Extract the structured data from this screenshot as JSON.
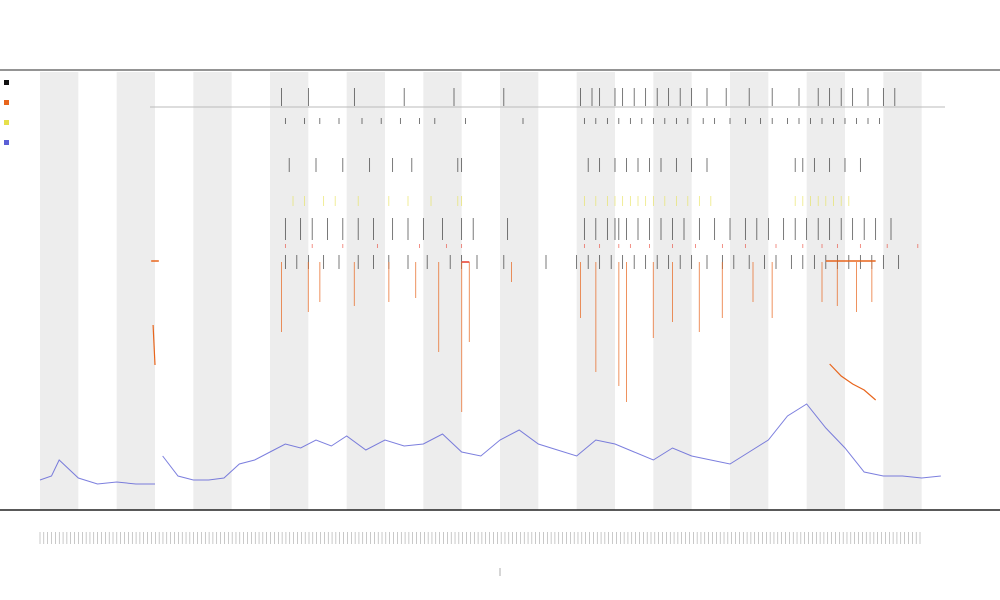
{
  "chart_data": {
    "type": "line",
    "title_lines": [
      "",
      "",
      ""
    ],
    "xlabel": "",
    "ylabel": "",
    "colors": {
      "line": "#5b5fd6",
      "band": "#ededed",
      "hr": "#e8651c",
      "spike": "#e8651c",
      "event_black": "#111111",
      "event_red": "#e83a2a",
      "event_yellow": "#e6e04a",
      "axis": "#222222",
      "guide": "#bbbbbb"
    },
    "legend": {
      "placement": "top-left",
      "items": [
        "",
        "",
        "",
        ""
      ]
    },
    "day_bands": [
      [
        0,
        1
      ],
      [
        2,
        3
      ],
      [
        4,
        5
      ],
      [
        6,
        7
      ],
      [
        8,
        9
      ],
      [
        10,
        11
      ],
      [
        12,
        13
      ],
      [
        14,
        15
      ],
      [
        16,
        17
      ],
      [
        18,
        19
      ],
      [
        20,
        21
      ],
      [
        22,
        23
      ]
    ],
    "x_range": [
      0,
      24
    ],
    "y_range": [
      0,
      100
    ],
    "segments": [
      {
        "x": [
          0.0,
          0.3,
          0.5,
          1.0,
          1.5,
          2.0,
          2.5,
          3.0
        ],
        "y": [
          10,
          12,
          20,
          11,
          8,
          9,
          8,
          8
        ]
      },
      {
        "x": [
          3.2,
          3.6,
          4.0,
          4.4,
          4.8,
          5.2,
          5.6,
          6.0,
          6.4,
          6.8,
          7.2,
          7.6,
          8.0,
          8.5,
          9.0,
          9.5,
          10.0,
          10.5,
          11.0,
          11.5,
          12.0,
          12.5,
          13.0,
          13.5,
          14.0,
          14.5,
          15.0,
          15.5,
          16.0,
          16.5,
          17.0,
          17.5,
          18.0,
          18.5,
          19.0,
          19.5,
          20.0,
          20.5,
          21.0,
          21.5,
          22.0,
          22.5,
          23.0,
          23.5
        ],
        "y": [
          22,
          12,
          10,
          10,
          11,
          18,
          20,
          24,
          28,
          26,
          30,
          27,
          32,
          25,
          30,
          27,
          28,
          33,
          24,
          22,
          30,
          35,
          28,
          25,
          22,
          30,
          28,
          24,
          20,
          26,
          22,
          20,
          18,
          24,
          30,
          42,
          48,
          36,
          26,
          14,
          12,
          12,
          11,
          12
        ]
      }
    ],
    "hr_segments": [
      {
        "x": [
          20.6,
          20.9,
          21.2,
          21.5,
          21.8
        ],
        "y": [
          58,
          52,
          48,
          45,
          40
        ]
      }
    ],
    "spikes_x": [
      6.3,
      7.0,
      7.3,
      8.2,
      9.1,
      9.8,
      10.4,
      11.0,
      11.2,
      12.3,
      14.1,
      14.5,
      15.1,
      15.3,
      16.0,
      16.5,
      17.2,
      17.8,
      18.6,
      19.1,
      20.4,
      20.8,
      21.3,
      21.7
    ],
    "spike_heights": [
      0.35,
      0.25,
      0.2,
      0.22,
      0.2,
      0.18,
      0.45,
      0.75,
      0.4,
      0.1,
      0.28,
      0.55,
      0.62,
      0.7,
      0.38,
      0.3,
      0.35,
      0.28,
      0.2,
      0.28,
      0.2,
      0.22,
      0.25,
      0.2
    ],
    "event_rows": [
      {
        "name": "",
        "color_key": "event_black",
        "x": [
          6.3,
          7.0,
          8.2,
          9.5,
          10.8,
          12.1,
          14.1,
          14.4,
          14.6,
          15.0,
          15.2,
          15.5,
          15.8,
          16.1,
          16.4,
          16.7,
          17.0,
          17.4,
          17.9,
          18.5,
          19.1,
          19.8,
          20.3,
          20.6,
          20.9,
          21.2,
          21.6,
          22.0,
          22.3
        ]
      },
      {
        "name": "",
        "color_key": "event_black",
        "x": [
          6.4,
          6.9,
          7.3,
          7.8,
          8.4,
          8.9,
          9.4,
          9.9,
          10.3,
          11.1,
          12.6,
          14.2,
          14.5,
          14.8,
          15.1,
          15.4,
          15.7,
          16.0,
          16.3,
          16.6,
          16.9,
          17.3,
          17.6,
          18.0,
          18.4,
          18.8,
          19.1,
          19.5,
          19.8,
          20.1,
          20.4,
          20.7,
          21.0,
          21.3,
          21.6,
          21.9
        ]
      },
      {
        "name": "",
        "color_key": "event_black",
        "x": [
          6.5,
          7.2,
          7.9,
          8.6,
          9.2,
          9.7,
          10.9,
          11.0,
          14.3,
          14.6,
          15.0,
          15.3,
          15.6,
          15.9,
          16.2,
          16.6,
          17.0,
          17.4,
          19.7,
          19.9,
          20.2,
          20.6,
          21.0,
          21.4
        ]
      },
      {
        "name": "",
        "color_key": "event_yellow",
        "x": [
          6.6,
          6.9,
          7.4,
          7.7,
          8.3,
          9.1,
          9.6,
          10.2,
          10.9,
          11.0,
          14.2,
          14.5,
          14.8,
          15.0,
          15.2,
          15.4,
          15.6,
          15.8,
          16.0,
          16.3,
          16.6,
          16.9,
          17.2,
          17.5,
          19.7,
          19.9,
          20.1,
          20.3,
          20.5,
          20.7,
          20.9,
          21.1
        ]
      },
      {
        "name": "",
        "color_key": "event_black",
        "x": [
          6.4,
          6.8,
          7.1,
          7.5,
          7.9,
          8.3,
          8.7,
          9.2,
          9.6,
          10.0,
          10.5,
          11.0,
          11.3,
          12.2,
          14.2,
          14.5,
          14.8,
          15.0,
          15.1,
          15.3,
          15.6,
          15.9,
          16.2,
          16.5,
          16.8,
          17.2,
          17.6,
          18.0,
          18.4,
          18.7,
          19.0,
          19.4,
          19.7,
          20.0,
          20.3,
          20.6,
          20.9,
          21.2,
          21.5,
          21.8,
          22.2
        ]
      },
      {
        "name": "",
        "color_key": "event_red",
        "x": [
          6.4,
          7.1,
          7.9,
          8.8,
          9.9,
          10.6,
          11.0,
          14.2,
          14.6,
          15.1,
          15.4,
          15.9,
          16.5,
          17.1,
          17.8,
          18.4,
          19.2,
          19.9,
          20.4,
          20.8,
          21.4,
          22.1,
          22.9
        ]
      },
      {
        "name": "",
        "color_key": "event_black",
        "x": [
          6.4,
          6.7,
          7.0,
          7.4,
          7.8,
          8.3,
          8.7,
          9.1,
          9.6,
          10.1,
          10.7,
          11.0,
          11.4,
          12.1,
          13.2,
          14.0,
          14.3,
          14.6,
          14.9,
          15.2,
          15.5,
          15.8,
          16.1,
          16.4,
          16.7,
          17.0,
          17.4,
          17.8,
          18.1,
          18.5,
          18.9,
          19.2,
          19.6,
          19.9,
          20.2,
          20.5,
          20.8,
          21.1,
          21.4,
          21.7,
          22.0,
          22.4
        ]
      }
    ],
    "tick_count": 230,
    "grid": false
  }
}
